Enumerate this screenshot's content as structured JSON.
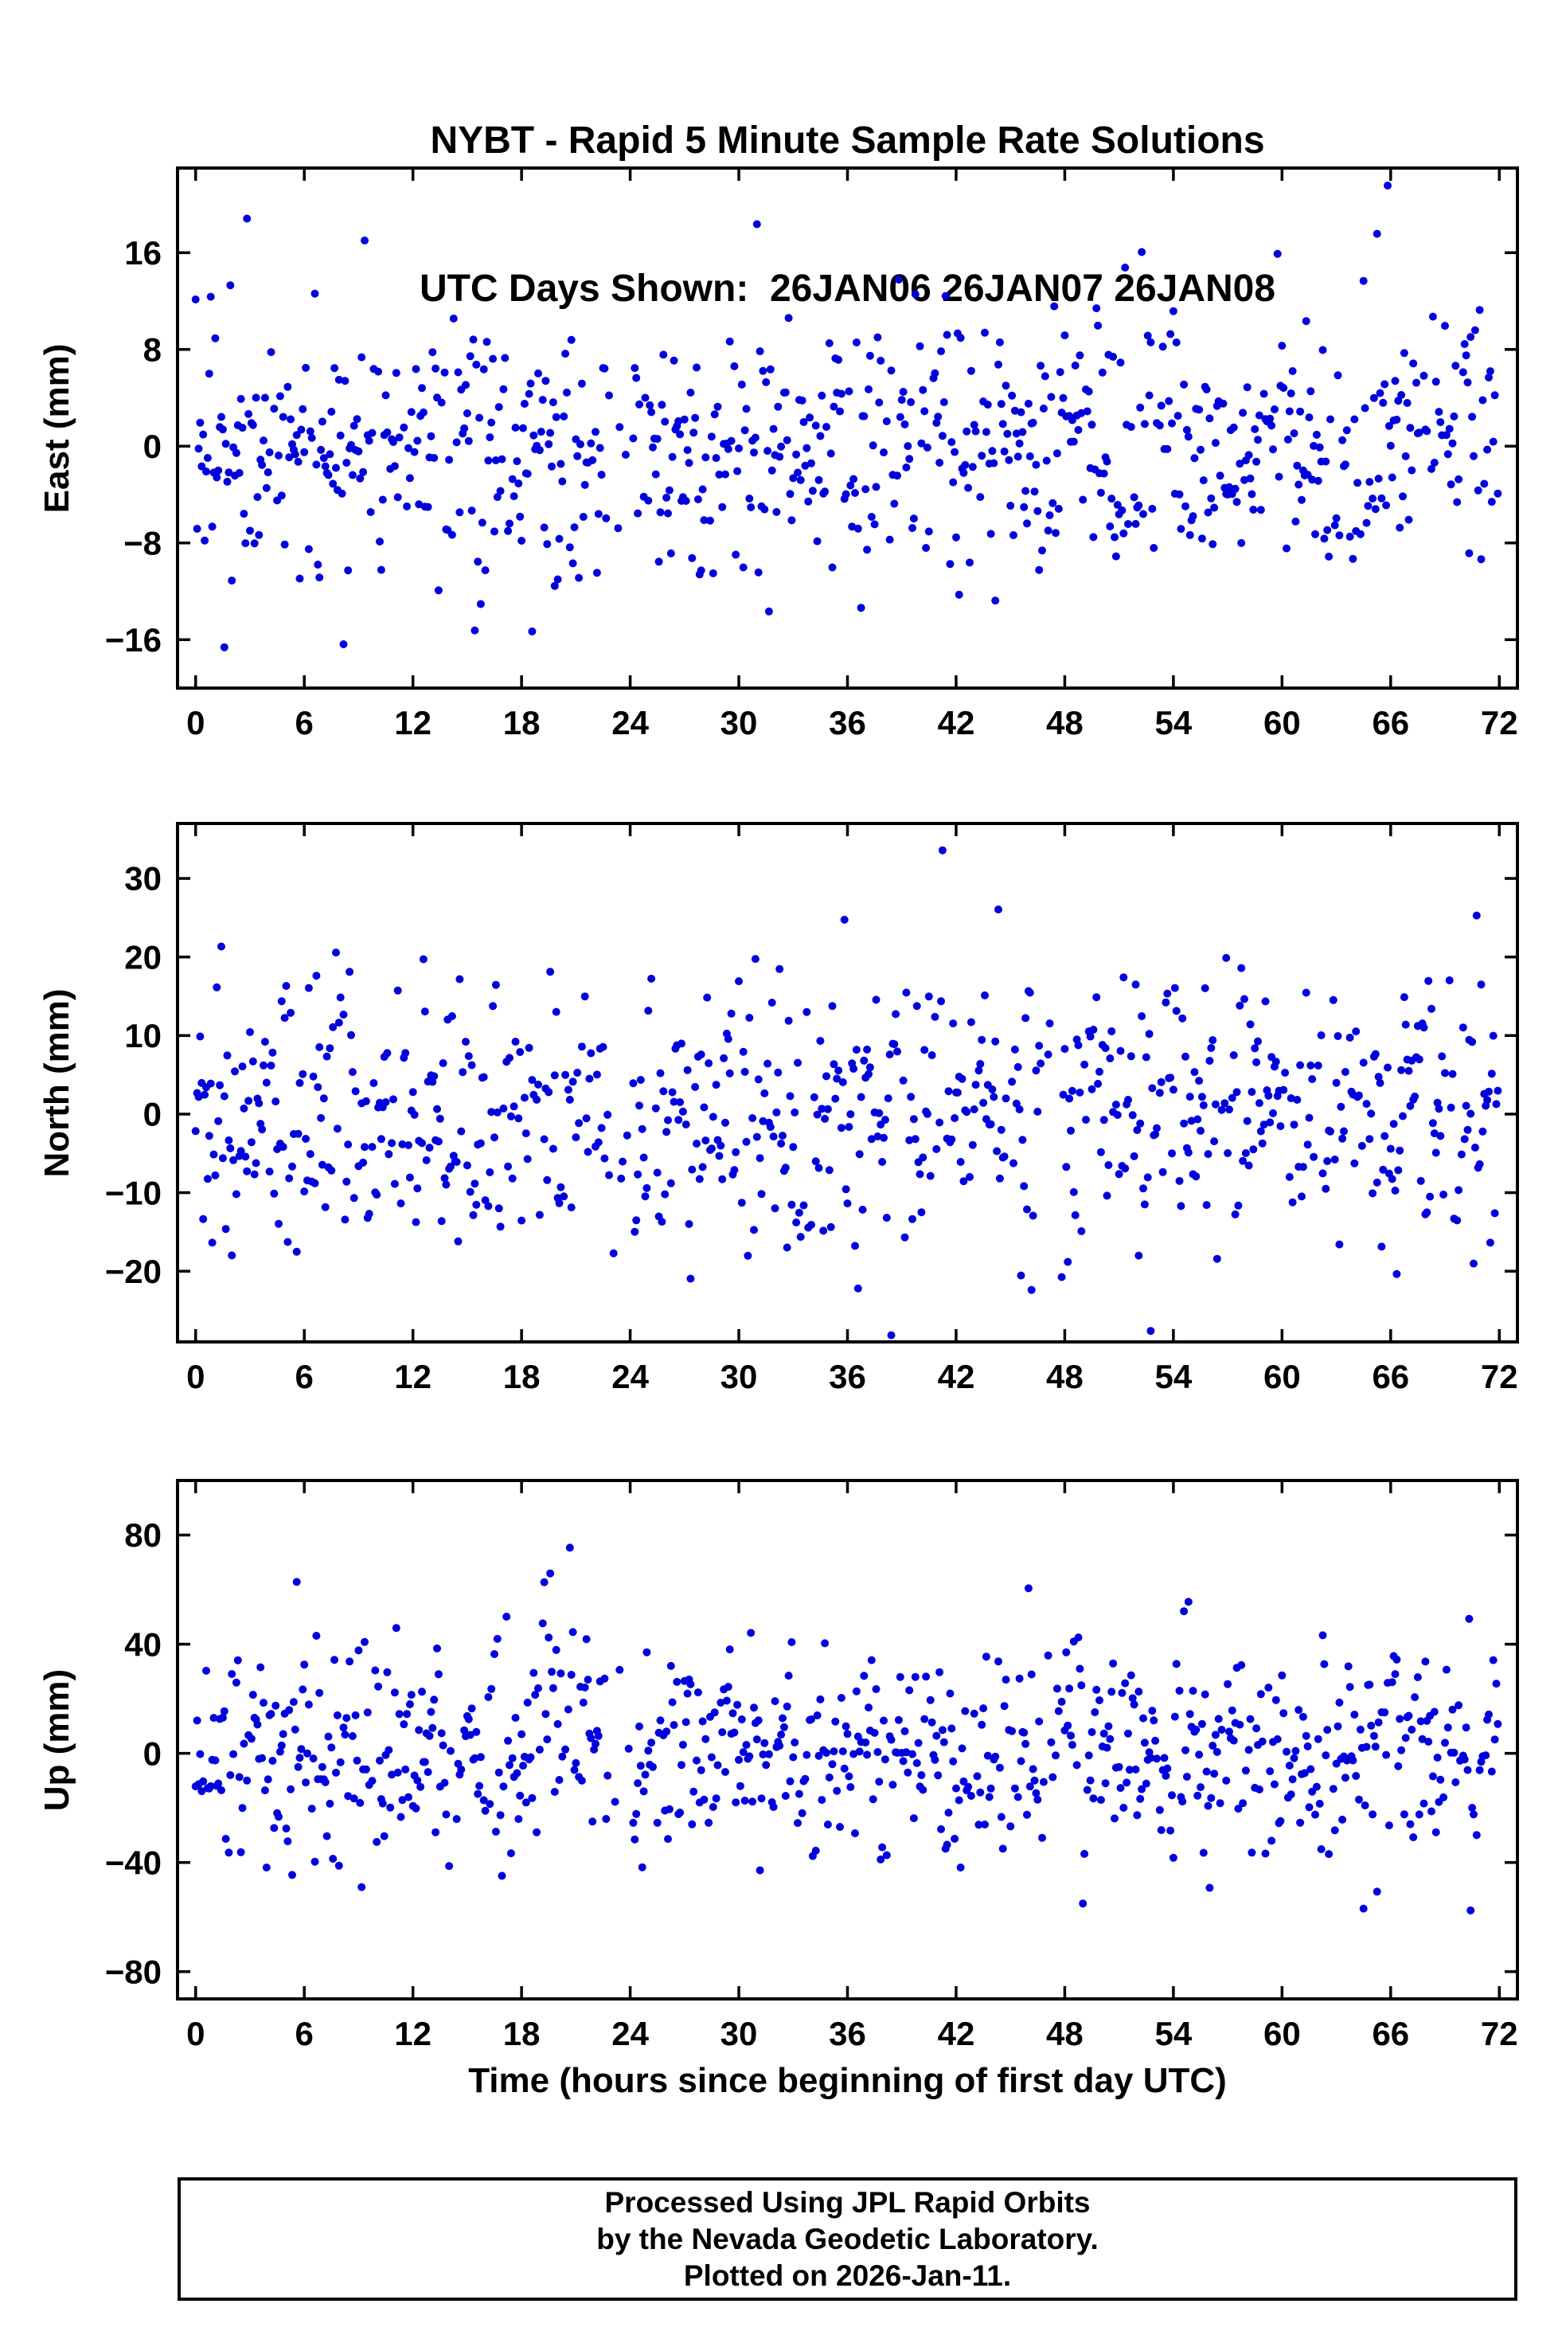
{
  "title": {
    "line1": "NYBT - Rapid 5 Minute Sample Rate Solutions",
    "line2": "UTC Days Shown:  26JAN06 26JAN07 26JAN08"
  },
  "xlabel": "Time (hours since beginning of first day UTC)",
  "footer": {
    "line1": "Processed Using JPL Rapid Orbits",
    "line2": "by the Nevada Geodetic Laboratory.",
    "line3": "Plotted on 2026-Jan-11."
  },
  "chart_data": [
    {
      "type": "scatter",
      "name": "east",
      "ylabel": "East (mm)",
      "xlim": [
        -1,
        73
      ],
      "ylim": [
        -20,
        23
      ],
      "xticks": [
        0,
        6,
        12,
        18,
        24,
        30,
        36,
        42,
        48,
        54,
        60,
        66,
        72
      ],
      "yticks": [
        -16,
        -8,
        0,
        8,
        16
      ],
      "marker": {
        "color": "#0000dd",
        "radius": 5
      },
      "data_representation": "procedural-estimate",
      "gen": {
        "seed": 7,
        "dt": 0.0833333,
        "t_end": 71.92,
        "keep": 0.88,
        "std": 5.2,
        "outlier_prob": 0.025,
        "outlier_scale": 2.3,
        "bursts": [],
        "gaps": [
          [
            22.9,
            24.15,
            0.25
          ]
        ]
      }
    },
    {
      "type": "scatter",
      "name": "north",
      "ylabel": "North (mm)",
      "xlim": [
        -1,
        73
      ],
      "ylim": [
        -29,
        37
      ],
      "xticks": [
        0,
        6,
        12,
        18,
        24,
        30,
        36,
        42,
        48,
        54,
        60,
        66,
        72
      ],
      "yticks": [
        -20,
        -10,
        0,
        10,
        20,
        30
      ],
      "marker": {
        "color": "#0000dd",
        "radius": 5
      },
      "data_representation": "procedural-estimate",
      "gen": {
        "seed": 21,
        "dt": 0.0833333,
        "t_end": 71.92,
        "keep": 0.88,
        "std": 8.2,
        "outlier_prob": 0.025,
        "outlier_scale": 2.2,
        "bursts": [],
        "gaps": [
          [
            22.9,
            24.15,
            0.25
          ],
          [
            46.6,
            47.9,
            0.35
          ]
        ]
      }
    },
    {
      "type": "scatter",
      "name": "up",
      "ylabel": "Up (mm)",
      "xlim": [
        -1,
        73
      ],
      "ylim": [
        -90,
        100
      ],
      "xticks": [
        0,
        6,
        12,
        18,
        24,
        30,
        36,
        42,
        48,
        54,
        60,
        66,
        72
      ],
      "yticks": [
        -80,
        -40,
        0,
        40,
        80
      ],
      "marker": {
        "color": "#0000dd",
        "radius": 5
      },
      "data_representation": "procedural-estimate",
      "gen": {
        "seed": 99,
        "dt": 0.0833333,
        "t_end": 71.92,
        "keep": 0.88,
        "std": 19,
        "outlier_prob": 0.02,
        "outlier_scale": 2.1,
        "bursts": [
          [
            18.6,
            21.6,
            1.6,
            28
          ],
          [
            47.6,
            49.2,
            1.4,
            22
          ]
        ],
        "gaps": [
          [
            22.9,
            24.15,
            0.3
          ],
          [
            46.6,
            47.9,
            0.35
          ]
        ]
      }
    }
  ]
}
